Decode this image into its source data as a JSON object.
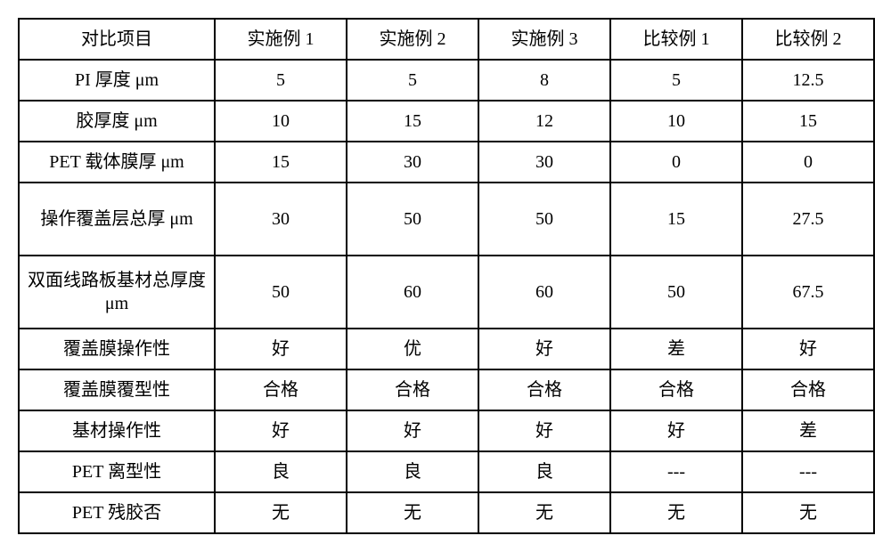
{
  "table": {
    "columns": [
      "对比项目",
      "实施例 1",
      "实施例 2",
      "实施例 3",
      "比较例 1",
      "比较例 2"
    ],
    "rows": [
      {
        "label": "PI 厚度 μm",
        "values": [
          "5",
          "5",
          "8",
          "5",
          "12.5"
        ],
        "tall": false
      },
      {
        "label": "胶厚度 μm",
        "values": [
          "10",
          "15",
          "12",
          "10",
          "15"
        ],
        "tall": false
      },
      {
        "label": "PET 载体膜厚 μm",
        "values": [
          "15",
          "30",
          "30",
          "0",
          "0"
        ],
        "tall": false
      },
      {
        "label": "操作覆盖层总厚 μm",
        "values": [
          "30",
          "50",
          "50",
          "15",
          "27.5"
        ],
        "tall": true
      },
      {
        "label": "双面线路板基材总厚度 μm",
        "values": [
          "50",
          "60",
          "60",
          "50",
          "67.5"
        ],
        "tall": true
      },
      {
        "label": "覆盖膜操作性",
        "values": [
          "好",
          "优",
          "好",
          "差",
          "好"
        ],
        "tall": false
      },
      {
        "label": "覆盖膜覆型性",
        "values": [
          "合格",
          "合格",
          "合格",
          "合格",
          "合格"
        ],
        "tall": false
      },
      {
        "label": "基材操作性",
        "values": [
          "好",
          "好",
          "好",
          "好",
          "差"
        ],
        "tall": false
      },
      {
        "label": "PET 离型性",
        "values": [
          "良",
          "良",
          "良",
          "---",
          "---"
        ],
        "tall": false
      },
      {
        "label": "PET 残胶否",
        "values": [
          "无",
          "无",
          "无",
          "无",
          "无"
        ],
        "tall": false
      }
    ],
    "border_color": "#000000",
    "background_color": "#ffffff",
    "font_size": 20,
    "col_widths": {
      "first": 220,
      "rest": 148
    }
  }
}
